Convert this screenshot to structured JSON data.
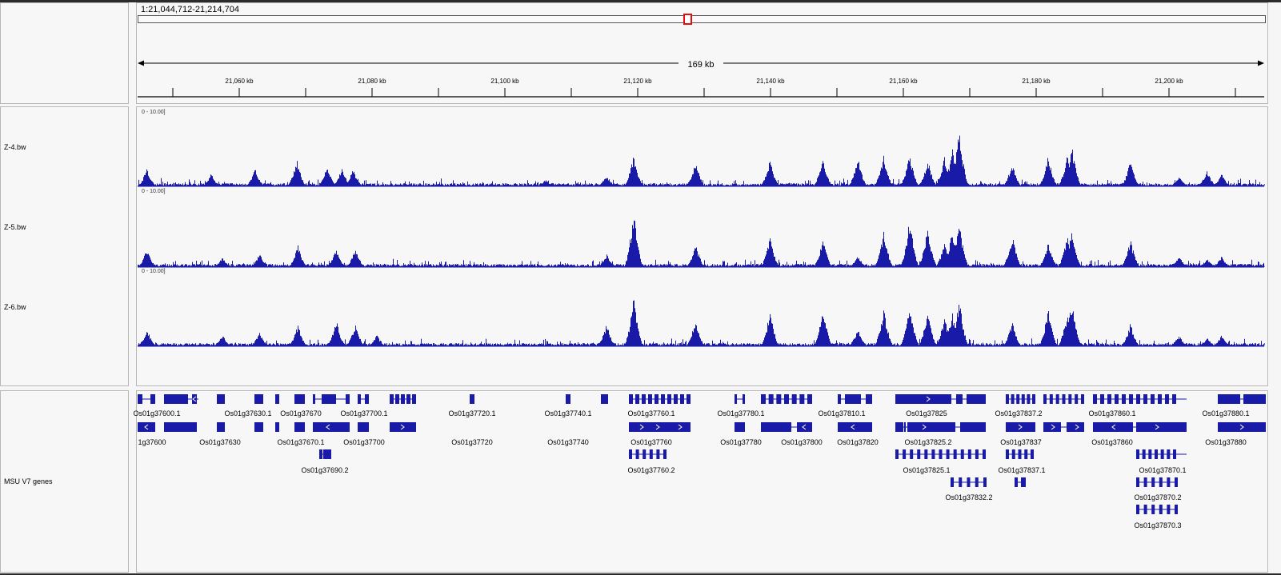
{
  "locus": "1:21,044,712-21,214,704",
  "ruler": {
    "span_label": "169 kb",
    "ticks": [
      "21,060 kb",
      "21,080 kb",
      "21,100 kb",
      "21,120 kb",
      "21,140 kb",
      "21,160 kb",
      "21,180 kb",
      "21,200 kb"
    ]
  },
  "colors": {
    "track": "#1a1aa8",
    "selection": "#e01010"
  },
  "tracks": [
    {
      "name": "Z-4.bw",
      "scale": "0 - 10.00]",
      "peaks": [
        [
          0.8,
          0.32
        ],
        [
          6.5,
          0.22
        ],
        [
          10.4,
          0.31
        ],
        [
          14.1,
          0.48
        ],
        [
          16.8,
          0.35
        ],
        [
          18.1,
          0.33
        ],
        [
          19.1,
          0.3
        ],
        [
          36.2,
          0.12
        ],
        [
          41.6,
          0.2
        ],
        [
          44,
          0.56
        ],
        [
          49.5,
          0.43
        ],
        [
          56.1,
          0.48
        ],
        [
          60.8,
          0.53
        ],
        [
          63.9,
          0.51
        ],
        [
          66.2,
          0.55
        ],
        [
          68.5,
          0.56
        ],
        [
          70.1,
          0.48
        ],
        [
          71.6,
          0.53
        ],
        [
          72.3,
          0.69
        ],
        [
          72.9,
          1.0
        ],
        [
          77.6,
          0.41
        ],
        [
          80.8,
          0.54
        ],
        [
          82.9,
          0.72
        ],
        [
          82.5,
          0.56
        ],
        [
          88.1,
          0.46
        ],
        [
          92.4,
          0.18
        ],
        [
          94.9,
          0.28
        ],
        [
          96.2,
          0.22
        ]
      ]
    },
    {
      "name": "Z-5.bw",
      "scale": "0 - 10.00]",
      "peaks": [
        [
          0.8,
          0.33
        ],
        [
          7.5,
          0.18
        ],
        [
          10.8,
          0.24
        ],
        [
          14.2,
          0.38
        ],
        [
          17.6,
          0.32
        ],
        [
          19.3,
          0.33
        ],
        [
          41.6,
          0.23
        ],
        [
          44,
          0.98
        ],
        [
          49.5,
          0.41
        ],
        [
          56.1,
          0.55
        ],
        [
          60.8,
          0.51
        ],
        [
          63.9,
          0.2
        ],
        [
          66.2,
          0.64
        ],
        [
          68.5,
          0.86
        ],
        [
          70.1,
          0.71
        ],
        [
          71.6,
          0.43
        ],
        [
          72.3,
          0.67
        ],
        [
          72.9,
          0.79
        ],
        [
          77.6,
          0.57
        ],
        [
          80.8,
          0.44
        ],
        [
          82.9,
          0.66
        ],
        [
          82.5,
          0.57
        ],
        [
          88.1,
          0.49
        ],
        [
          92.4,
          0.2
        ],
        [
          94.9,
          0.15
        ],
        [
          96.2,
          0.19
        ]
      ]
    },
    {
      "name": "Z-6.bw",
      "scale": "0 - 10.00]",
      "peaks": [
        [
          0.8,
          0.3
        ],
        [
          7.5,
          0.2
        ],
        [
          10.8,
          0.26
        ],
        [
          14.2,
          0.39
        ],
        [
          17.6,
          0.47
        ],
        [
          19.3,
          0.41
        ],
        [
          21.2,
          0.2
        ],
        [
          41.6,
          0.39
        ],
        [
          44,
          0.86
        ],
        [
          49.5,
          0.48
        ],
        [
          56.1,
          0.62
        ],
        [
          60.8,
          0.69
        ],
        [
          63.9,
          0.31
        ],
        [
          66.2,
          0.66
        ],
        [
          68.5,
          0.77
        ],
        [
          70.1,
          0.65
        ],
        [
          71.6,
          0.51
        ],
        [
          72.3,
          0.59
        ],
        [
          72.9,
          0.83
        ],
        [
          77.6,
          0.43
        ],
        [
          80.8,
          0.66
        ],
        [
          82.9,
          0.8
        ],
        [
          82.5,
          0.59
        ],
        [
          88.1,
          0.41
        ],
        [
          92.4,
          0.2
        ],
        [
          94.9,
          0.15
        ],
        [
          96.2,
          0.2
        ]
      ]
    }
  ],
  "genes": {
    "name": "MSU V7 genes",
    "labels": [
      "Os01g37600.1",
      "Os01g37630.1",
      "Os01g37670",
      "Os01g37700.1",
      "Os01g37720.1",
      "Os01g37740.1",
      "Os01g37760.1",
      "Os01g37780.1",
      "Os01g37810.1",
      "Os01g37825",
      "Os01g37837.2",
      "Os01g37860.1",
      "Os01g37880.1",
      "1g37600",
      "Os01g37630",
      "Os01g37670.1",
      "Os01g37700",
      "Os01g37720",
      "Os01g37740",
      "Os01g37760",
      "Os01g37780",
      "Os01g37800",
      "Os01g37820",
      "Os01g37825.2",
      "Os01g37837",
      "Os01g37860",
      "Os01g37880",
      "Os01g37690.2",
      "Os01g37760.2",
      "Os01g37825.1",
      "Os01g37837.1",
      "Os01g37870.1",
      "Os01g37832.2",
      "Os01g37870.2",
      "Os01g37870.3"
    ]
  }
}
